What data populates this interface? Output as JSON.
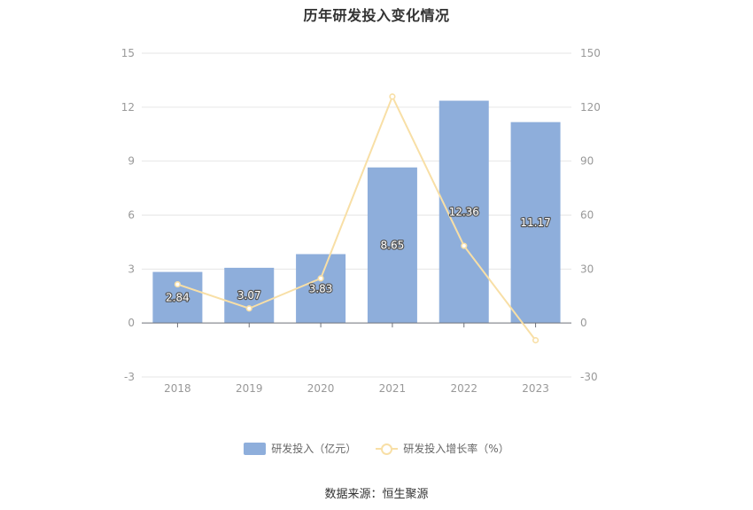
{
  "chart_data": {
    "type": "bar",
    "title": "历年研发投入变化情况",
    "categories": [
      "2018",
      "2019",
      "2020",
      "2021",
      "2022",
      "2023"
    ],
    "series": [
      {
        "name": "研发投入（亿元）",
        "type": "bar",
        "axis": "left",
        "color": "#8eaedb",
        "values": [
          2.84,
          3.07,
          3.83,
          8.65,
          12.36,
          11.17
        ],
        "labels": [
          "2.84",
          "3.07",
          "3.83",
          "8.65",
          "12.36",
          "11.17"
        ]
      },
      {
        "name": "研发投入增长率（%）",
        "type": "line",
        "axis": "right",
        "color": "#f8dfa6",
        "values": [
          21.5,
          8.1,
          24.8,
          125.9,
          42.9,
          -9.6
        ]
      }
    ],
    "y_left": {
      "ylim": [
        -3,
        15
      ],
      "ticks": [
        "15",
        "12",
        "9",
        "6",
        "3",
        "0",
        "-3"
      ],
      "tick_values": [
        15,
        12,
        9,
        6,
        3,
        0,
        -3
      ]
    },
    "y_right": {
      "ylim": [
        -30,
        150
      ],
      "ticks": [
        "150",
        "120",
        "90",
        "60",
        "30",
        "0",
        "-30"
      ],
      "tick_values": [
        150,
        120,
        90,
        60,
        30,
        0,
        -30
      ]
    },
    "xlabel": "",
    "ylabel": "",
    "grid": true,
    "legend_position": "bottom-center"
  },
  "source": "数据来源：恒生聚源"
}
